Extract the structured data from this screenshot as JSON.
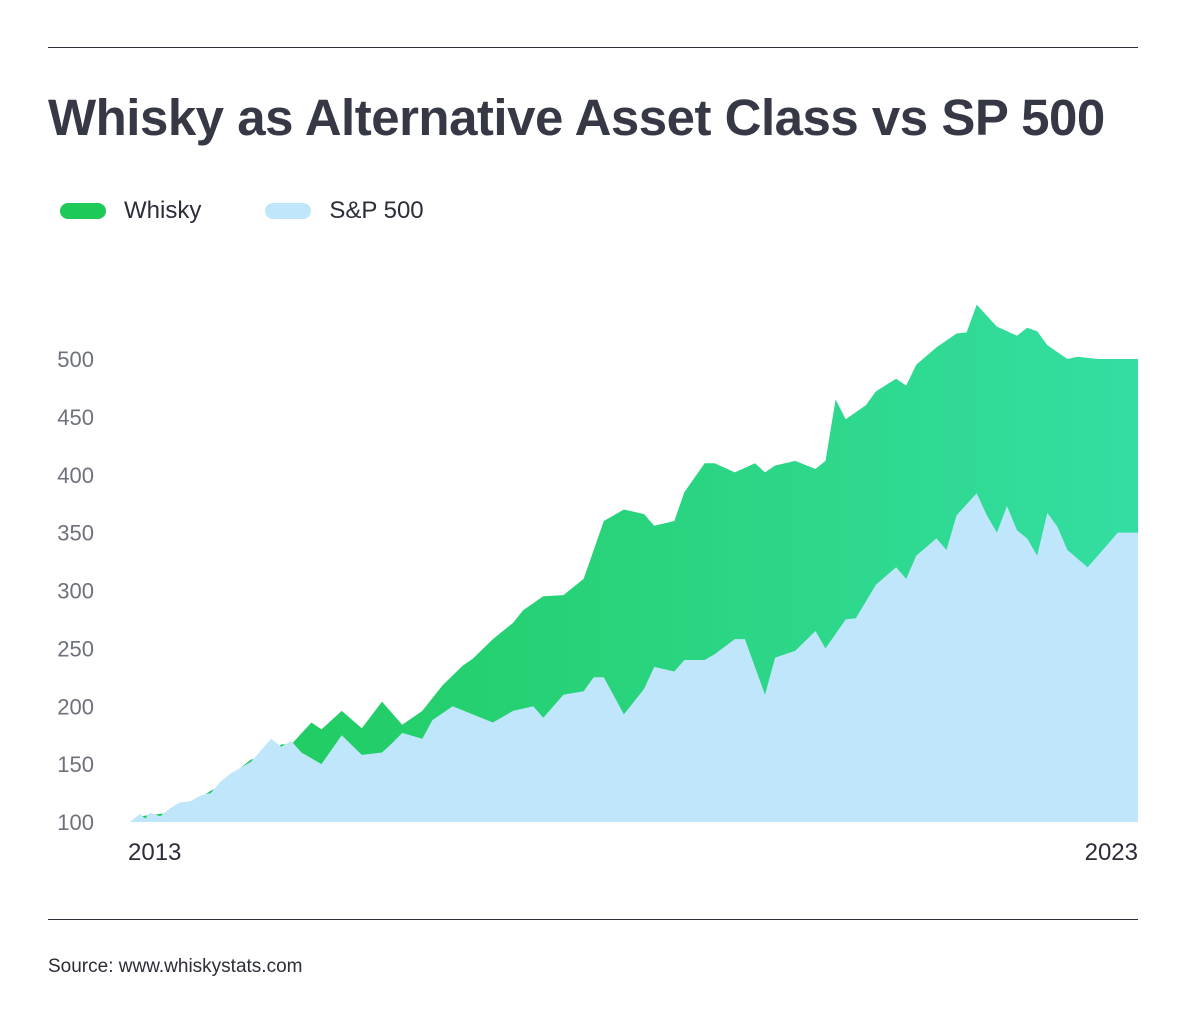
{
  "header": {
    "title": "Whisky as Alternative Asset Class vs SP 500"
  },
  "footer": {
    "source": "Source: www.whiskystats.com"
  },
  "colors": {
    "whisky_start": "#1dc957",
    "whisky_end": "#34dea2",
    "sp500": "#bfe6fa",
    "rule": "#2c2f38",
    "title": "#363945"
  },
  "chart_data": {
    "type": "area",
    "title": "Whisky as Alternative Asset Class vs SP 500",
    "legend_position": "top-left",
    "grid": false,
    "ylim": [
      100,
      500
    ],
    "y_ticks": [
      "500",
      "450",
      "400",
      "350",
      "300",
      "250",
      "200",
      "150",
      "100"
    ],
    "x_tick_labels": [
      "2013",
      "2023"
    ],
    "xlim": [
      2013,
      2023
    ],
    "series": [
      {
        "name": "Whisky",
        "x": [
          2013,
          2013.1,
          2013.2,
          2013.3,
          2013.4,
          2013.5,
          2013.6,
          2013.7,
          2013.8,
          2013.9,
          2014.0,
          2014.2,
          2014.4,
          2014.5,
          2014.6,
          2014.8,
          2014.9,
          2015.1,
          2015.3,
          2015.5,
          2015.7,
          2015.9,
          2016.1,
          2016.3,
          2016.4,
          2016.6,
          2016.8,
          2016.9,
          2017.1,
          2017.3,
          2017.5,
          2017.6,
          2017.7,
          2017.9,
          2018.1,
          2018.2,
          2018.4,
          2018.5,
          2018.7,
          2018.8,
          2019.0,
          2019.2,
          2019.3,
          2019.4,
          2019.6,
          2019.8,
          2019.9,
          2020.0,
          2020.1,
          2020.3,
          2020.4,
          2020.6,
          2020.7,
          2020.8,
          2021.0,
          2021.2,
          2021.3,
          2021.4,
          2021.6,
          2021.8,
          2021.9,
          2022.0,
          2022.1,
          2022.3,
          2022.4,
          2022.6,
          2022.7,
          2022.8,
          2022.9,
          2023.0
        ],
        "values": [
          100,
          105,
          106,
          107,
          108,
          116,
          118,
          121,
          127,
          131,
          140,
          154,
          157,
          167,
          167,
          186,
          180,
          196,
          181,
          204,
          184,
          196,
          218,
          235,
          241,
          258,
          272,
          283,
          295,
          296,
          310,
          335,
          360,
          370,
          366,
          356,
          360,
          385,
          410,
          410,
          402,
          410,
          402,
          408,
          412,
          405,
          412,
          465,
          448,
          460,
          472,
          483,
          477,
          495,
          510,
          522,
          523,
          547,
          528,
          520,
          527,
          524,
          512,
          500,
          502,
          500,
          500,
          500,
          500,
          500
        ]
      },
      {
        "name": "S&P 500",
        "x": [
          2013,
          2013.1,
          2013.15,
          2013.2,
          2013.3,
          2013.4,
          2013.5,
          2013.6,
          2013.7,
          2013.8,
          2013.9,
          2014.0,
          2014.2,
          2014.4,
          2014.5,
          2014.6,
          2014.7,
          2014.9,
          2015.1,
          2015.3,
          2015.5,
          2015.6,
          2015.7,
          2015.9,
          2016.0,
          2016.2,
          2016.4,
          2016.6,
          2016.8,
          2016.9,
          2017.0,
          2017.1,
          2017.3,
          2017.5,
          2017.6,
          2017.7,
          2017.9,
          2018.1,
          2018.2,
          2018.4,
          2018.5,
          2018.7,
          2018.8,
          2019.0,
          2019.1,
          2019.3,
          2019.4,
          2019.6,
          2019.8,
          2019.9,
          2020.1,
          2020.2,
          2020.4,
          2020.6,
          2020.7,
          2020.8,
          2021.0,
          2021.1,
          2021.2,
          2021.4,
          2021.5,
          2021.6,
          2021.7,
          2021.8,
          2021.9,
          2022.0,
          2022.1,
          2022.2,
          2022.3,
          2022.5,
          2022.7,
          2022.8,
          2022.9,
          2023.0
        ],
        "values": [
          100,
          107,
          103,
          108,
          105,
          112,
          117,
          118,
          123,
          125,
          135,
          142,
          152,
          172,
          165,
          170,
          160,
          150,
          175,
          158,
          160,
          168,
          177,
          172,
          188,
          200,
          193,
          186,
          196,
          198,
          200,
          190,
          210,
          213,
          225,
          225,
          193,
          215,
          234,
          230,
          240,
          240,
          245,
          258,
          258,
          210,
          242,
          248,
          265,
          250,
          275,
          276,
          305,
          320,
          310,
          330,
          345,
          335,
          365,
          384,
          365,
          350,
          373,
          352,
          345,
          330,
          367,
          355,
          335,
          320,
          340,
          350,
          350,
          350
        ]
      }
    ]
  }
}
